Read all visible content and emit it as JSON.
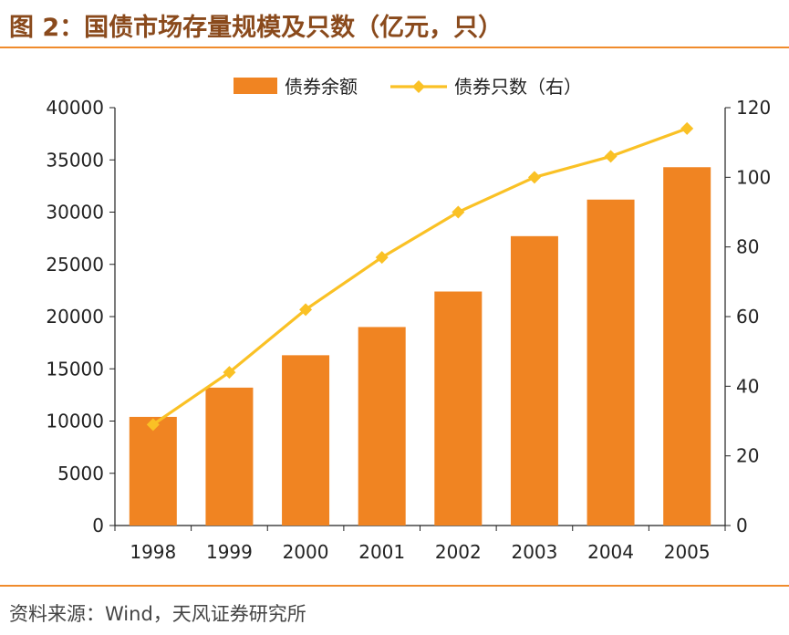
{
  "header": {
    "title": "图 2：国债市场存量规模及只数（亿元，只）"
  },
  "footer": {
    "source": "资料来源：Wind，天风证券研究所"
  },
  "colors": {
    "bar": "#f08422",
    "line": "#fac125",
    "rule": "#f08b2c"
  },
  "chart_data": {
    "type": "bar",
    "categories": [
      "1998",
      "1999",
      "2000",
      "2001",
      "2002",
      "2003",
      "2004",
      "2005"
    ],
    "series": [
      {
        "name": "债券余额",
        "type": "bar",
        "axis": "left",
        "values": [
          10400,
          13200,
          16300,
          19000,
          22400,
          27700,
          31200,
          34300
        ]
      },
      {
        "name": "债券只数（右）",
        "type": "line",
        "axis": "right",
        "marker": "diamond",
        "values": [
          29,
          44,
          62,
          77,
          90,
          100,
          106,
          114
        ]
      }
    ],
    "y_left": {
      "lim": [
        0,
        40000
      ],
      "ticks": [
        "0",
        "5000",
        "10000",
        "15000",
        "20000",
        "25000",
        "30000",
        "35000",
        "40000"
      ]
    },
    "y_right": {
      "lim": [
        0,
        120
      ],
      "ticks": [
        "0",
        "20",
        "40",
        "60",
        "80",
        "100",
        "120"
      ]
    },
    "legend": "top-center",
    "grid": false
  }
}
